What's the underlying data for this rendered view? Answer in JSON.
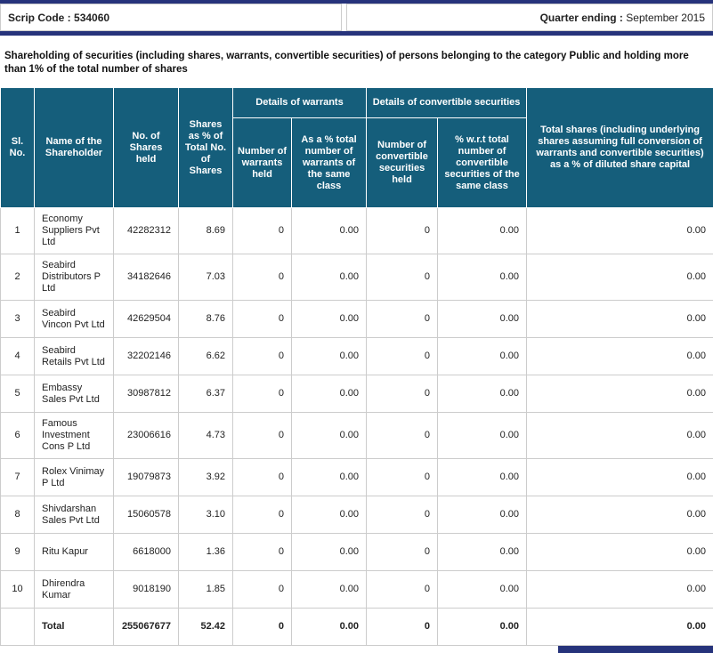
{
  "colors": {
    "bar_navy": "#26337B",
    "table_header_teal": "#155E7B",
    "border_gray": "#CCCCCC"
  },
  "meta_bar": {
    "scrip_code_label": "Scrip Code : ",
    "scrip_code_value": "534060",
    "quarter_label": "Quarter ending : ",
    "quarter_value": "September 2015"
  },
  "title": "Shareholding of securities (including shares, warrants, convertible securities) of persons belonging to the category Public and holding more than 1% of the total number of shares",
  "table": {
    "headers": {
      "sl_no": "Sl. No.",
      "name": "Name of the Shareholder",
      "shares_held": "No. of Shares held",
      "shares_pct": "Shares as % of Total No. of Shares",
      "warrants_group": "Details of warrants",
      "warrants_held": "Number of warrants held",
      "warrants_pct": "As a % total number of warrants of the same class",
      "convertible_group": "Details of convertible securities",
      "convertible_held": "Number of convertible securities held",
      "convertible_pct": "% w.r.t total number of convertible securities of the same class",
      "total_shares": "Total shares (including underlying shares assuming full conversion of warrants and convertible securities) as a % of diluted share capital"
    },
    "rows": [
      {
        "sl": "1",
        "name": "Economy Suppliers Pvt Ltd",
        "shares": "42282312",
        "pct": "8.69",
        "warrants": "0",
        "warrants_pct": "0.00",
        "conv": "0",
        "conv_pct": "0.00",
        "total": "0.00"
      },
      {
        "sl": "2",
        "name": "Seabird Distributors P Ltd",
        "shares": "34182646",
        "pct": "7.03",
        "warrants": "0",
        "warrants_pct": "0.00",
        "conv": "0",
        "conv_pct": "0.00",
        "total": "0.00"
      },
      {
        "sl": "3",
        "name": "Seabird Vincon Pvt Ltd",
        "shares": "42629504",
        "pct": "8.76",
        "warrants": "0",
        "warrants_pct": "0.00",
        "conv": "0",
        "conv_pct": "0.00",
        "total": "0.00"
      },
      {
        "sl": "4",
        "name": "Seabird Retails Pvt Ltd",
        "shares": "32202146",
        "pct": "6.62",
        "warrants": "0",
        "warrants_pct": "0.00",
        "conv": "0",
        "conv_pct": "0.00",
        "total": "0.00"
      },
      {
        "sl": "5",
        "name": "Embassy Sales Pvt Ltd",
        "shares": "30987812",
        "pct": "6.37",
        "warrants": "0",
        "warrants_pct": "0.00",
        "conv": "0",
        "conv_pct": "0.00",
        "total": "0.00"
      },
      {
        "sl": "6",
        "name": "Famous Investment Cons P Ltd",
        "shares": "23006616",
        "pct": "4.73",
        "warrants": "0",
        "warrants_pct": "0.00",
        "conv": "0",
        "conv_pct": "0.00",
        "total": "0.00"
      },
      {
        "sl": "7",
        "name": "Rolex Vinimay P Ltd",
        "shares": "19079873",
        "pct": "3.92",
        "warrants": "0",
        "warrants_pct": "0.00",
        "conv": "0",
        "conv_pct": "0.00",
        "total": "0.00"
      },
      {
        "sl": "8",
        "name": "Shivdarshan Sales Pvt Ltd",
        "shares": "15060578",
        "pct": "3.10",
        "warrants": "0",
        "warrants_pct": "0.00",
        "conv": "0",
        "conv_pct": "0.00",
        "total": "0.00"
      },
      {
        "sl": "9",
        "name": "Ritu Kapur",
        "shares": "6618000",
        "pct": "1.36",
        "warrants": "0",
        "warrants_pct": "0.00",
        "conv": "0",
        "conv_pct": "0.00",
        "total": "0.00"
      },
      {
        "sl": "10",
        "name": "Dhirendra Kumar",
        "shares": "9018190",
        "pct": "1.85",
        "warrants": "0",
        "warrants_pct": "0.00",
        "conv": "0",
        "conv_pct": "0.00",
        "total": "0.00"
      }
    ],
    "total_row": {
      "sl": "",
      "name": "Total",
      "shares": "255067677",
      "pct": "52.42",
      "warrants": "0",
      "warrants_pct": "0.00",
      "conv": "0",
      "conv_pct": "0.00",
      "total": "0.00"
    }
  }
}
